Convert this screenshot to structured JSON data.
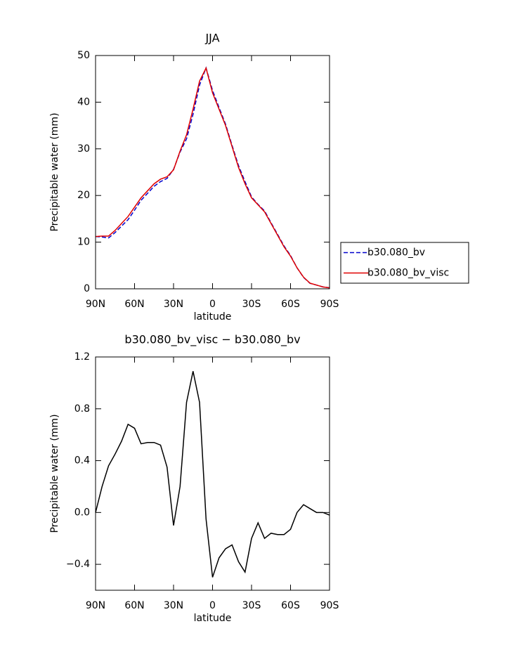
{
  "chart_data": [
    {
      "type": "line",
      "title": "JJA",
      "xlabel": "latitude",
      "ylabel": "Precipitable water (mm)",
      "x": [
        90,
        85,
        80,
        75,
        70,
        65,
        60,
        55,
        50,
        45,
        40,
        35,
        30,
        25,
        20,
        15,
        10,
        5,
        0,
        -5,
        -10,
        -15,
        -20,
        -25,
        -30,
        -35,
        -40,
        -45,
        -50,
        -55,
        -60,
        -65,
        -70,
        -75,
        -80,
        -85,
        -90
      ],
      "series": [
        {
          "name": "b30.080_bv",
          "color": "#0000cc",
          "dash": true,
          "values": [
            11.2,
            11.1,
            10.9,
            12.05,
            13.45,
            14.82,
            16.85,
            18.97,
            20.46,
            21.96,
            22.98,
            23.65,
            25.6,
            29.3,
            32.15,
            37.41,
            43.65,
            47.35,
            42.5,
            38.85,
            35.28,
            30.75,
            26.38,
            22.96,
            19.7,
            18.08,
            16.7,
            14.16,
            11.67,
            9.17,
            7.13,
            4.5,
            2.44,
            1.17,
            0.8,
            0.4,
            0.22
          ]
        },
        {
          "name": "b30.080_bv_visc",
          "color": "#e00000",
          "dash": false,
          "values": [
            11.2,
            11.3,
            11.3,
            12.5,
            14,
            15.5,
            17.5,
            19.5,
            21,
            22.5,
            23.5,
            24,
            25.5,
            29.5,
            33,
            38.5,
            44.5,
            47.3,
            42,
            38.5,
            35,
            30.5,
            26,
            22.5,
            19.5,
            18,
            16.5,
            14,
            11.5,
            9,
            7,
            4.5,
            2.5,
            1.2,
            0.8,
            0.4,
            0.2
          ]
        }
      ],
      "xlim": [
        90,
        -90
      ],
      "xticks": [
        {
          "value": 90,
          "label": "90N"
        },
        {
          "value": 60,
          "label": "60N"
        },
        {
          "value": 30,
          "label": "30N"
        },
        0,
        {
          "value": -30,
          "label": "30S"
        },
        {
          "value": -60,
          "label": "60S"
        },
        {
          "value": -90,
          "label": "90S"
        }
      ],
      "ylim": [
        0,
        50
      ],
      "yticks": [
        0,
        10,
        20,
        30,
        40,
        50
      ],
      "legend": "right"
    },
    {
      "type": "line",
      "title": "b30.080_bv_visc − b30.080_bv",
      "xlabel": "latitude",
      "ylabel": "Precipitable water (mm)",
      "x": [
        90,
        85,
        80,
        75,
        70,
        65,
        60,
        55,
        50,
        45,
        40,
        35,
        30,
        25,
        20,
        15,
        10,
        5,
        0,
        -5,
        -10,
        -15,
        -20,
        -25,
        -30,
        -35,
        -40,
        -45,
        -50,
        -55,
        -60,
        -65,
        -70,
        -75,
        -80,
        -85,
        -90
      ],
      "series": [
        {
          "color": "#000000",
          "dash": false,
          "values": [
            0.0,
            0.2,
            0.36,
            0.45,
            0.55,
            0.68,
            0.65,
            0.53,
            0.54,
            0.54,
            0.52,
            0.35,
            -0.1,
            0.2,
            0.85,
            1.09,
            0.85,
            -0.05,
            -0.5,
            -0.35,
            -0.28,
            -0.25,
            -0.38,
            -0.46,
            -0.2,
            -0.08,
            -0.2,
            -0.16,
            -0.17,
            -0.17,
            -0.13,
            0.0,
            0.06,
            0.03,
            0.0,
            0.0,
            -0.02
          ]
        }
      ],
      "xlim": [
        90,
        -90
      ],
      "xticks": [
        {
          "value": 90,
          "label": "90N"
        },
        {
          "value": 60,
          "label": "60N"
        },
        {
          "value": 30,
          "label": "30N"
        },
        0,
        {
          "value": -30,
          "label": "30S"
        },
        {
          "value": -60,
          "label": "60S"
        },
        {
          "value": -90,
          "label": "90S"
        }
      ],
      "ylim": [
        -0.6,
        1.2
      ],
      "yticks": [
        {
          "value": -0.4,
          "label": "−0.4"
        },
        {
          "value": 0,
          "label": "0.0"
        },
        0.4,
        0.8,
        1.2
      ]
    }
  ]
}
